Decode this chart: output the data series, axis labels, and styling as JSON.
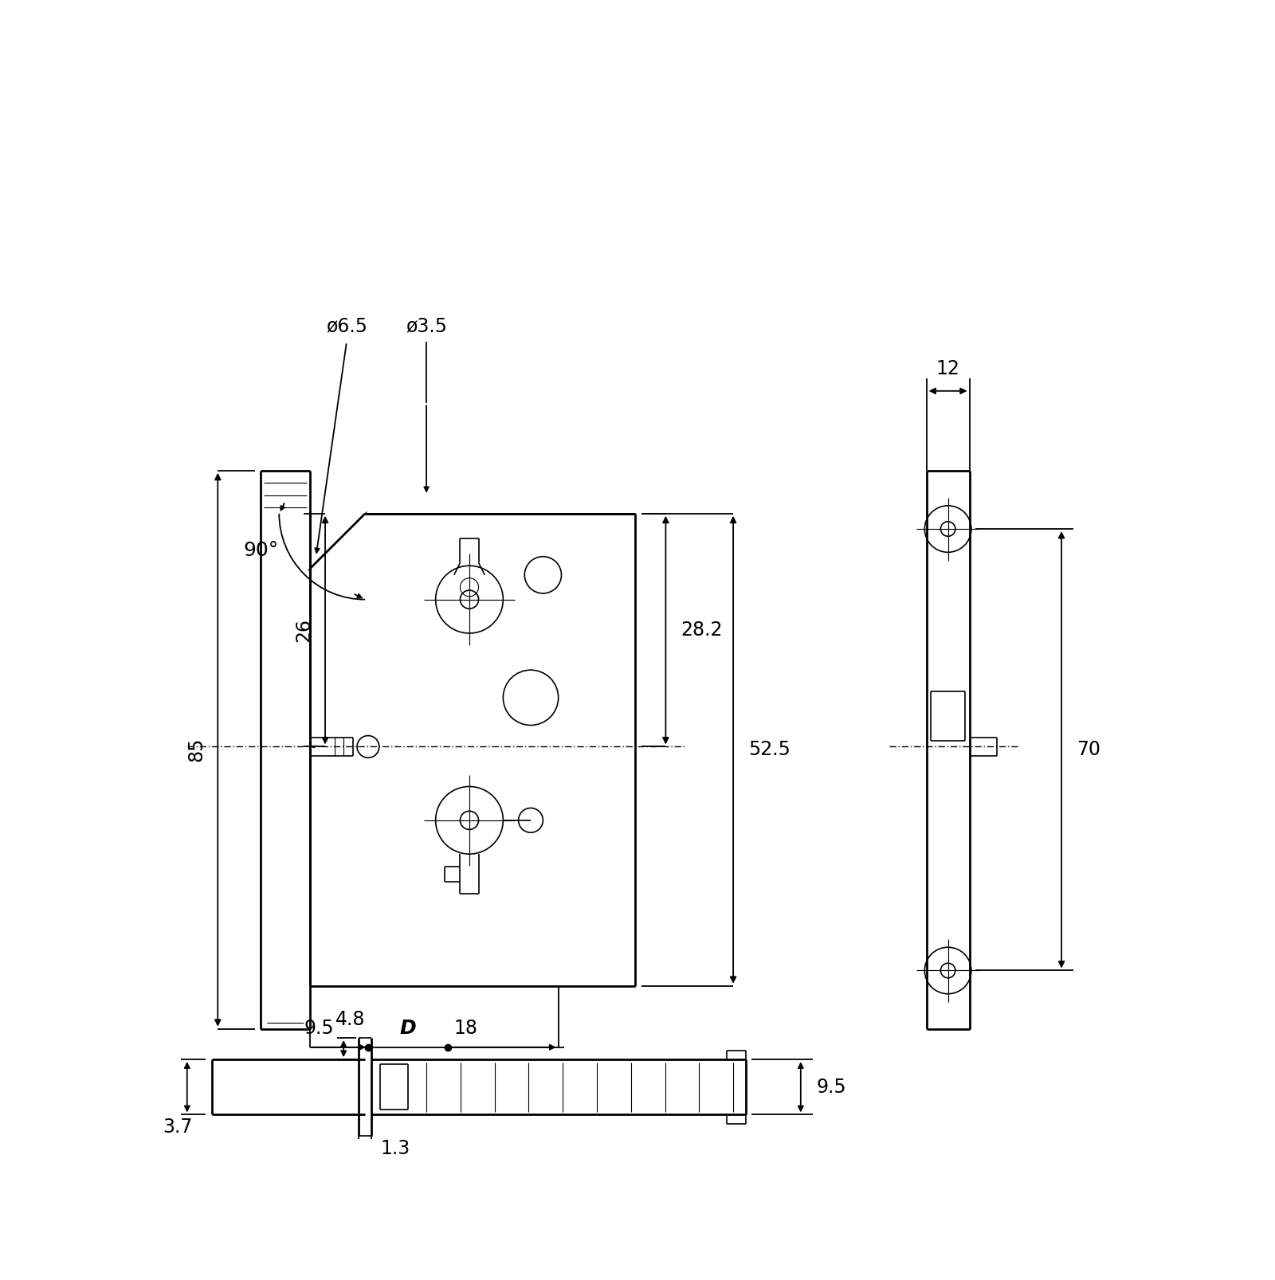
{
  "bg_color": "#ffffff",
  "lc": "#000000",
  "lw_main": 2.0,
  "lw_thin": 1.2,
  "lw_dim": 1.3,
  "lw_hatch": 0.8,
  "fs": 17,
  "annotations": {
    "phi65": "ø6.5",
    "phi35": "ø3.5",
    "angle90": "90°",
    "dim_85": "85",
    "dim_26": "26",
    "dim_282": "28.2",
    "dim_525": "52.5",
    "dim_12": "12",
    "dim_70": "70",
    "dim_95l": "9.5",
    "dim_D": "D",
    "dim_18": "18",
    "dim_48": "4.8",
    "dim_37": "3.7",
    "dim_13": "1.3",
    "dim_95r": "9.5"
  }
}
